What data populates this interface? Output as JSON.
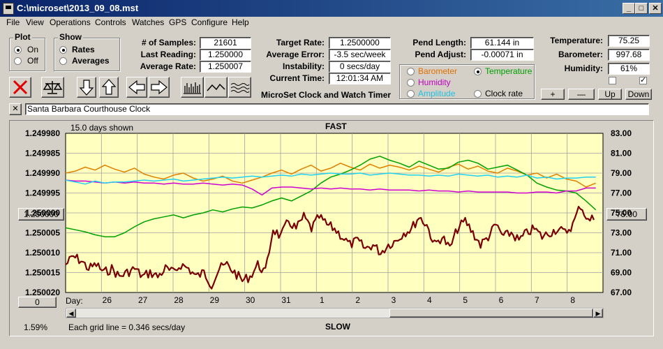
{
  "window": {
    "title": "C:\\microset\\2013_09_08.mst",
    "min": "_",
    "max": "□",
    "close": "✕"
  },
  "menu": [
    "File",
    "View",
    "Operations",
    "Controls",
    "Watches",
    "GPS",
    "Configure",
    "Help"
  ],
  "plot_group": {
    "label": "Plot",
    "options": [
      "On",
      "Off"
    ],
    "selected": "On"
  },
  "show_group": {
    "label": "Show",
    "options": [
      "Rates",
      "Averages"
    ],
    "selected": "Rates"
  },
  "stats": {
    "samples_label": "# of Samples:",
    "samples": "21601",
    "last_label": "Last Reading:",
    "last": "1.250000",
    "avg_label": "Average Rate:",
    "avg": "1.250007"
  },
  "rates": {
    "target_label": "Target Rate:",
    "target": "1.2500000",
    "avgerr_label": "Average Error:",
    "avgerr": "-3.5 sec/week",
    "instab_label": "Instability:",
    "instab": "0 secs/day",
    "time_label": "Current Time:",
    "time": "12:01:34 AM",
    "app_name": "MicroSet Clock and Watch Timer"
  },
  "pend": {
    "length_label": "Pend Length:",
    "length": "61.144 in",
    "adjust_label": "Pend Adjust:",
    "adjust": "-0.00071 in"
  },
  "channels": [
    {
      "label": "Barometer",
      "color": "#e07000",
      "checked": false
    },
    {
      "label": "Temperature",
      "color": "#00a000",
      "checked": true
    },
    {
      "label": "Humidity",
      "color": "#c000c0",
      "checked": false
    },
    {
      "label": "Amplitude",
      "color": "#20c0e0",
      "checked": false
    },
    {
      "label": "Clock rate",
      "color": "#000000",
      "checked": false
    }
  ],
  "env": {
    "temp_label": "Temperature:",
    "temp": "75.25",
    "baro_label": "Barometer:",
    "baro": "997.68",
    "hum_label": "Humidity:",
    "hum": "61%"
  },
  "scale_buttons": [
    "+",
    "—",
    "Up",
    "Down"
  ],
  "notes": {
    "close": "✕",
    "text": "Santa Barbara Courthouse Clock"
  },
  "chart_data": {
    "type": "line",
    "title_top": "FAST",
    "title_bottom": "SLOW",
    "days_shown": "15.0 days shown",
    "grid_note": "Each grid line = 0.346 secs/day",
    "percent": "1.59%",
    "day_label": "Day:",
    "x_ticks": [
      "26",
      "27",
      "28",
      "29",
      "30",
      "31",
      "1",
      "2",
      "3",
      "4",
      "5",
      "6",
      "7",
      "8"
    ],
    "left_ticks": [
      "1.249980",
      "1.249985",
      "1.249990",
      "1.249995",
      "1.250000",
      "1.250005",
      "1.250010",
      "1.250015",
      "1.250020"
    ],
    "right_ticks": [
      "83.00",
      "81.00",
      "79.00",
      "77.00",
      "75.00",
      "73.00",
      "71.00",
      "69.00",
      "67.00"
    ],
    "left_box": "1.250000",
    "right_box": "75.00",
    "left_bottom_box": "0",
    "ylim_left": [
      1.24998,
      1.25002
    ],
    "ylim_right": [
      67,
      83
    ],
    "series": [
      {
        "name": "Barometer",
        "color": "#e08000",
        "values": [
          79.0,
          79.2,
          79.6,
          79.3,
          79.8,
          79.4,
          79.1,
          79.5,
          78.9,
          78.6,
          78.4,
          78.8,
          79.0,
          78.5,
          78.2,
          78.4,
          78.7,
          78.2,
          78.0,
          78.3,
          78.6,
          79.0,
          79.3,
          78.9,
          79.4,
          79.8,
          79.2,
          79.5,
          80.0,
          79.6,
          79.3,
          79.9,
          79.5,
          79.8,
          79.6,
          79.3,
          79.7,
          79.4,
          79.1,
          79.6,
          79.9,
          79.4,
          79.7,
          79.2,
          79.0,
          79.5,
          79.2,
          78.8,
          79.0,
          78.5,
          78.9,
          78.4,
          78.2,
          77.6,
          78.0
        ]
      },
      {
        "name": "Temperature",
        "color": "#00a000",
        "values": [
          73.5,
          73.3,
          73.1,
          72.8,
          72.6,
          72.6,
          73.0,
          73.6,
          74.1,
          74.4,
          74.6,
          74.8,
          74.5,
          74.8,
          75.0,
          75.3,
          75.1,
          75.4,
          75.6,
          75.5,
          75.8,
          76.2,
          76.5,
          76.2,
          76.7,
          77.2,
          78.0,
          78.6,
          78.9,
          79.3,
          79.8,
          80.4,
          80.7,
          80.3,
          80.0,
          79.6,
          80.2,
          79.8,
          79.4,
          79.5,
          80.1,
          80.3,
          80.0,
          79.4,
          79.6,
          79.8,
          79.3,
          78.8,
          78.0,
          77.6,
          77.3,
          77.2,
          77.0,
          76.2,
          75.3
        ]
      },
      {
        "name": "Humidity",
        "color": "#d000d0",
        "values": [
          78.3,
          78.2,
          78.2,
          78.1,
          78.0,
          78.1,
          78.0,
          78.1,
          78.0,
          78.0,
          77.9,
          78.0,
          77.9,
          77.9,
          78.0,
          77.9,
          77.8,
          77.9,
          77.8,
          77.4,
          76.8,
          77.5,
          77.6,
          77.6,
          77.5,
          77.4,
          77.5,
          77.4,
          77.5,
          77.4,
          77.4,
          77.3,
          77.4,
          77.3,
          77.3,
          77.3,
          77.2,
          77.3,
          77.2,
          77.2,
          77.1,
          77.2,
          77.1,
          77.1,
          77.1,
          77.1,
          77.0,
          77.0,
          77.1,
          77.1,
          77.0,
          77.2,
          77.2,
          77.5,
          77.5
        ]
      },
      {
        "name": "Amplitude",
        "color": "#20d0f0",
        "values": [
          78.3,
          78.1,
          77.9,
          78.2,
          78.0,
          78.1,
          78.1,
          78.2,
          78.3,
          78.2,
          78.3,
          78.4,
          78.2,
          78.3,
          78.4,
          78.5,
          78.6,
          78.5,
          78.6,
          78.7,
          78.6,
          78.7,
          78.8,
          78.7,
          78.9,
          78.8,
          78.9,
          79.0,
          78.9,
          78.9,
          79.0,
          78.8,
          78.9,
          79.0,
          78.9,
          78.8,
          78.8,
          78.7,
          78.8,
          78.7,
          78.9,
          78.8,
          78.7,
          78.8,
          78.6,
          78.7,
          78.6,
          78.8,
          78.5,
          78.6,
          78.4,
          78.5,
          78.5,
          78.6,
          78.6
        ]
      },
      {
        "name": "Clock rate",
        "color": "#7a0000",
        "values": [
          1.250013,
          1.250011,
          1.250012,
          1.250014,
          1.250013,
          1.250015,
          1.250014,
          1.250016,
          1.250015,
          1.250014,
          1.250016,
          1.250015,
          1.250016,
          1.250014,
          1.250015,
          1.250013,
          1.250014,
          1.250016,
          1.250015,
          1.250018,
          1.250014,
          1.250013,
          1.250015,
          1.250017,
          1.250016,
          1.250013,
          1.250015,
          1.250004,
          1.250006,
          1.250002,
          1.250004,
          1.250001,
          1.250004,
          1.250001,
          1.250003,
          1.250004,
          1.250006,
          1.250008,
          1.250007,
          1.250009,
          1.250008,
          1.25001,
          1.250008,
          1.250007,
          1.250005,
          1.250004,
          1.250001,
          1.250003,
          1.250008,
          1.250006,
          1.250009,
          1.250004,
          1.250002,
          1.250005,
          1.250008,
          1.250006,
          1.250003,
          1.250006,
          1.250005,
          1.250007,
          1.250005,
          1.250004,
          1.250006,
          1.250005,
          1.250004,
          1.250005,
          1.250003,
          1.249998,
          1.250002,
          1.250001
        ]
      }
    ]
  }
}
